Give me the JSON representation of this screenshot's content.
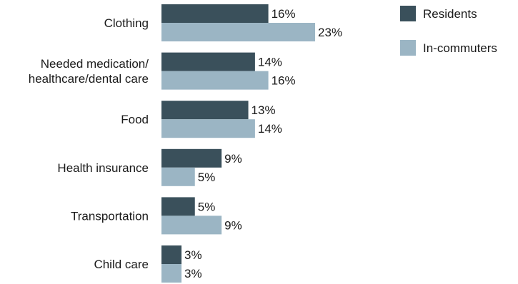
{
  "chart_data": {
    "type": "bar",
    "orientation": "horizontal",
    "categories": [
      [
        "Clothing"
      ],
      [
        "Needed medication/",
        "healthcare/dental care"
      ],
      [
        "Food"
      ],
      [
        "Health insurance"
      ],
      [
        "Transportation"
      ],
      [
        "Child care"
      ]
    ],
    "series": [
      {
        "name": "Residents",
        "values": [
          16,
          14,
          13,
          9,
          5,
          3
        ],
        "color": "#3a505b"
      },
      {
        "name": "In-commuters",
        "values": [
          23,
          16,
          14,
          5,
          9,
          3
        ],
        "color": "#9bb5c4"
      }
    ],
    "value_suffix": "%",
    "xlim": [
      0,
      40
    ],
    "grid": false,
    "axes_visible": false,
    "legend_position": "top-right"
  }
}
